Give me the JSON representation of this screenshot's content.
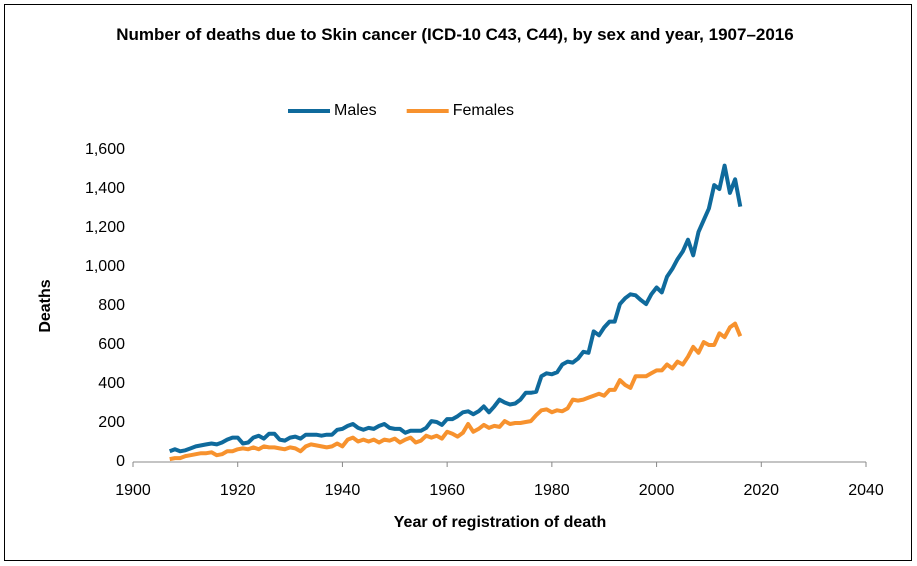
{
  "chart_data": {
    "type": "line",
    "title": "Number of deaths due to Skin cancer (ICD-10 C43, C44), by sex and year, 1907–2016",
    "x_label": "Year of registration of death",
    "y_label": "Deaths",
    "x": [
      1907,
      1908,
      1909,
      1910,
      1911,
      1912,
      1913,
      1914,
      1915,
      1916,
      1917,
      1918,
      1919,
      1920,
      1921,
      1922,
      1923,
      1924,
      1925,
      1926,
      1927,
      1928,
      1929,
      1930,
      1931,
      1932,
      1933,
      1934,
      1935,
      1936,
      1937,
      1938,
      1939,
      1940,
      1941,
      1942,
      1943,
      1944,
      1945,
      1946,
      1947,
      1948,
      1949,
      1950,
      1951,
      1952,
      1953,
      1954,
      1955,
      1956,
      1957,
      1958,
      1959,
      1960,
      1961,
      1962,
      1963,
      1964,
      1965,
      1966,
      1967,
      1968,
      1969,
      1970,
      1971,
      1972,
      1973,
      1974,
      1975,
      1976,
      1977,
      1978,
      1979,
      1980,
      1981,
      1982,
      1983,
      1984,
      1985,
      1986,
      1987,
      1988,
      1989,
      1990,
      1991,
      1992,
      1993,
      1994,
      1995,
      1996,
      1997,
      1998,
      1999,
      2000,
      2001,
      2002,
      2003,
      2004,
      2005,
      2006,
      2007,
      2008,
      2009,
      2010,
      2011,
      2012,
      2013,
      2014,
      2015,
      2016
    ],
    "series": [
      {
        "name": "Males",
        "color": "#0f6a9c",
        "values": [
          55,
          65,
          55,
          60,
          70,
          80,
          85,
          90,
          95,
          90,
          100,
          115,
          125,
          125,
          95,
          100,
          125,
          135,
          120,
          145,
          145,
          115,
          110,
          125,
          130,
          120,
          140,
          140,
          140,
          135,
          140,
          140,
          165,
          170,
          185,
          195,
          175,
          165,
          175,
          170,
          185,
          195,
          175,
          170,
          170,
          150,
          160,
          160,
          160,
          175,
          210,
          205,
          190,
          220,
          220,
          235,
          255,
          260,
          245,
          260,
          285,
          255,
          285,
          320,
          305,
          295,
          300,
          320,
          355,
          355,
          360,
          440,
          455,
          450,
          460,
          500,
          515,
          510,
          530,
          565,
          560,
          670,
          650,
          690,
          720,
          720,
          810,
          840,
          860,
          855,
          830,
          810,
          860,
          895,
          870,
          950,
          990,
          1040,
          1080,
          1140,
          1060,
          1180,
          1240,
          1300,
          1420,
          1400,
          1520,
          1380,
          1450,
          1310
        ]
      },
      {
        "name": "Females",
        "color": "#f7922e",
        "values": [
          15,
          20,
          20,
          30,
          35,
          40,
          45,
          45,
          50,
          35,
          40,
          55,
          55,
          65,
          70,
          65,
          75,
          65,
          80,
          75,
          75,
          70,
          65,
          75,
          70,
          55,
          80,
          90,
          85,
          80,
          75,
          80,
          95,
          80,
          115,
          125,
          105,
          115,
          105,
          115,
          100,
          115,
          110,
          120,
          100,
          115,
          125,
          100,
          110,
          135,
          125,
          135,
          120,
          155,
          145,
          130,
          150,
          195,
          155,
          170,
          190,
          175,
          185,
          180,
          210,
          195,
          200,
          200,
          205,
          210,
          240,
          265,
          270,
          255,
          265,
          260,
          275,
          320,
          315,
          320,
          330,
          340,
          350,
          340,
          370,
          370,
          420,
          395,
          380,
          440,
          440,
          440,
          455,
          470,
          470,
          500,
          480,
          515,
          500,
          540,
          590,
          560,
          615,
          600,
          600,
          660,
          640,
          690,
          710,
          645
        ]
      }
    ],
    "xlim": [
      1900,
      2040
    ],
    "xticks": [
      1900,
      1920,
      1940,
      1960,
      1980,
      2000,
      2020,
      2040
    ],
    "ylim": [
      0,
      1600
    ],
    "yticks": [
      0,
      200,
      400,
      600,
      800,
      {
        "value": 1000,
        "label": "1,000"
      },
      {
        "value": 1200,
        "label": "1,200"
      },
      {
        "value": 1400,
        "label": "1,400"
      },
      {
        "value": 1600,
        "label": "1,600"
      }
    ],
    "grid": false,
    "legend": "top"
  }
}
